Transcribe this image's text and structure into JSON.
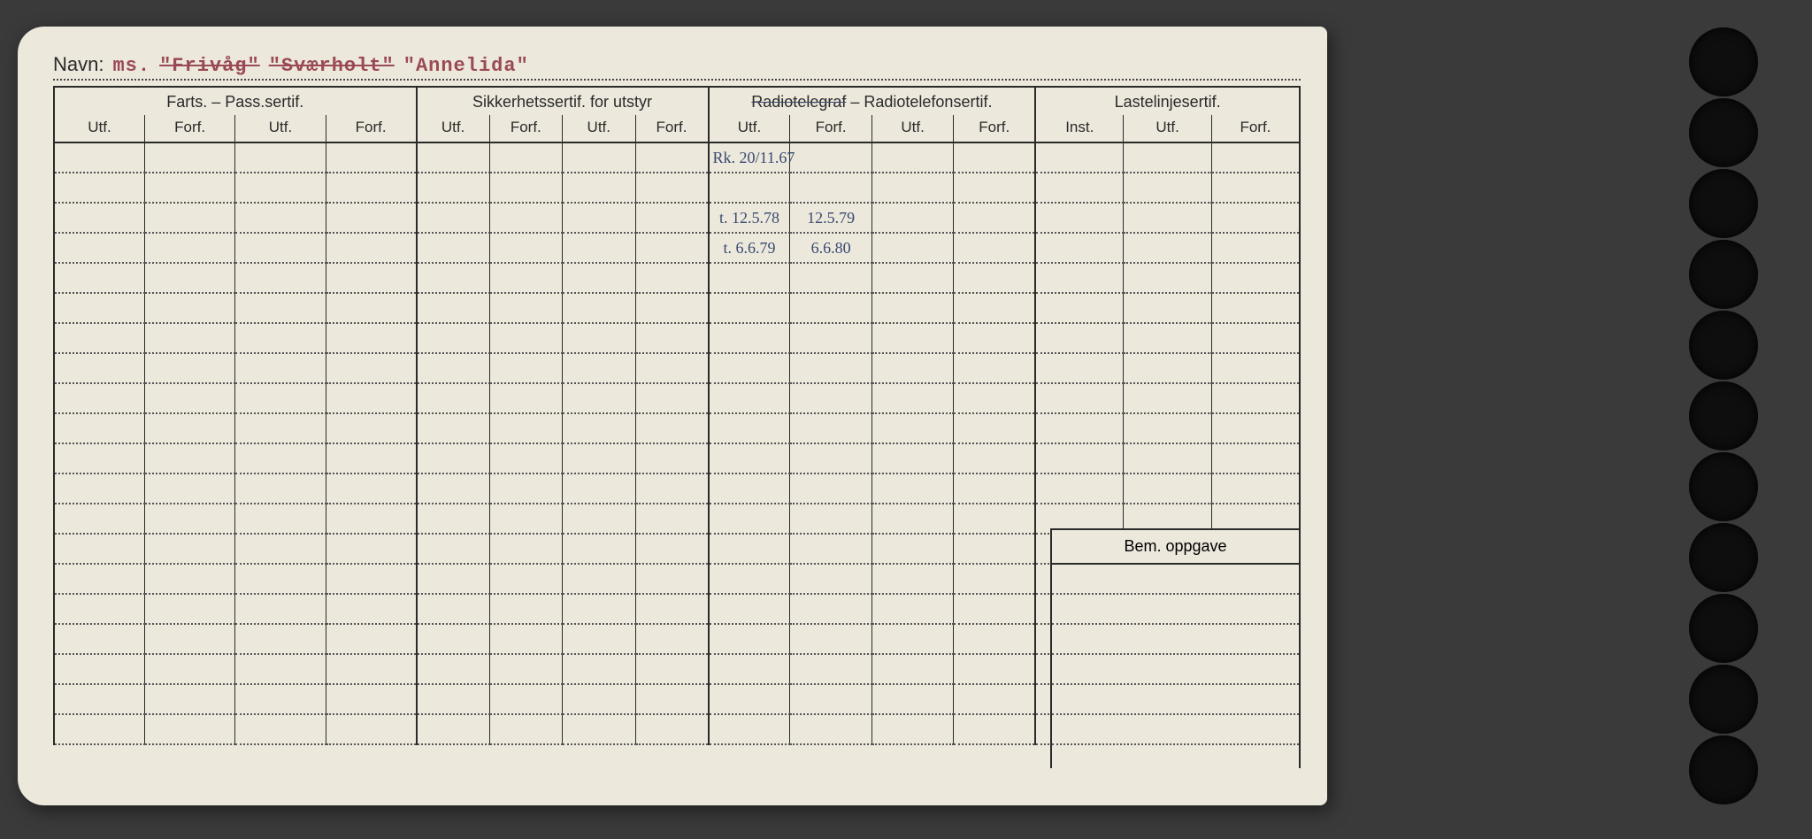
{
  "name_label": "Navn:",
  "vessel": {
    "prefix": "ms.",
    "name1": "\"Frivåg\"",
    "name2": "\"Sværholt\"",
    "name3": "\"Annelida\""
  },
  "groups": {
    "farts": {
      "title": "Farts. – Pass.sertif.",
      "cols": [
        "Utf.",
        "Forf.",
        "Utf.",
        "Forf."
      ]
    },
    "sikkerhet": {
      "title": "Sikkerhetssertif. for utstyr",
      "cols": [
        "Utf.",
        "Forf.",
        "Utf.",
        "Forf."
      ]
    },
    "radio": {
      "title": "Radiotelegraf – Radiotelefonsertif.",
      "cols": [
        "Utf.",
        "Forf.",
        "Utf.",
        "Forf."
      ]
    },
    "laste": {
      "title": "Lastelinjesertif.",
      "cols": [
        "Inst.",
        "Utf.",
        "Forf."
      ]
    }
  },
  "radio_entries": {
    "row1": {
      "utf1": "Rk. 20/11.67",
      "forf1": ""
    },
    "row2": {
      "utf1": "t. 12.5.78",
      "forf1": "12.5.79"
    },
    "row3": {
      "utf1": "t. 6.6.79",
      "forf1": "6.6.80"
    }
  },
  "bem_label": "Bem. oppgave",
  "row_count": 20,
  "colors": {
    "paper": "#ece8dc",
    "ink": "#2a2a2a",
    "typed": "#9a4a55",
    "handwriting": "#3a4a70",
    "page_bg": "#3a3a3a"
  }
}
